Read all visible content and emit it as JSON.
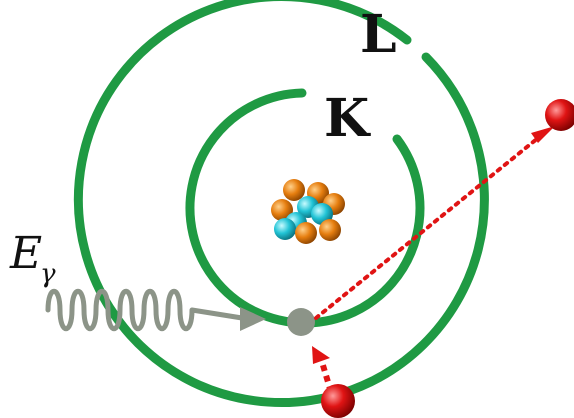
{
  "labels": {
    "outer_shell": "L",
    "inner_shell": "K",
    "photon_symbol": "E",
    "photon_subscript": "γ"
  },
  "colors": {
    "shell": "#1f9a43",
    "nucleon_proton": "#e67e0f",
    "nucleon_neutron": "#22c4d6",
    "photon": "#8c9488",
    "vacancy": "#8c9488",
    "electron": "#d60f0f",
    "trajectory": "#e01414"
  },
  "icons": {
    "nucleus": "nucleus-icon",
    "electron": "electron-icon",
    "photon_wave": "photon-wave-icon"
  }
}
